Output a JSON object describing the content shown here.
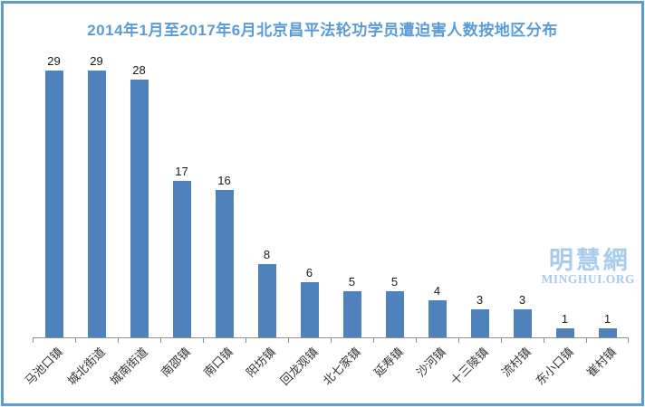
{
  "frame": {
    "border_color": "#5b9bd5",
    "background_color": "#ffffff"
  },
  "chart_data": {
    "type": "bar",
    "title": "2014年1月至2017年6月北京昌平法轮功学员遭迫害人数按地区分布",
    "categories": [
      "马池口镇",
      "城北街道",
      "城南街道",
      "南邵镇",
      "南口镇",
      "阳坊镇",
      "回龙观镇",
      "北七家镇",
      "延寿镇",
      "沙河镇",
      "十三陵镇",
      "流村镇",
      "东小口镇",
      "崔村镇"
    ],
    "values": [
      29,
      29,
      28,
      17,
      16,
      8,
      6,
      5,
      5,
      4,
      3,
      3,
      1,
      1
    ],
    "xlabel": "",
    "ylabel": "",
    "data_labels_shown": true,
    "y_axis_visible": false,
    "grid": false,
    "legend": false,
    "x_tick_rotation_deg": 45,
    "bar_color": "#4f81bd",
    "title_color": "#5b9bd5",
    "axis_color": "#8e8e8e",
    "value_label_color": "#1a1a1a",
    "tick_label_color": "#333333"
  },
  "watermark": {
    "cjk_text": "明慧網",
    "latin_text": "MINGHUI.ORG",
    "color": "#a8cbec"
  }
}
